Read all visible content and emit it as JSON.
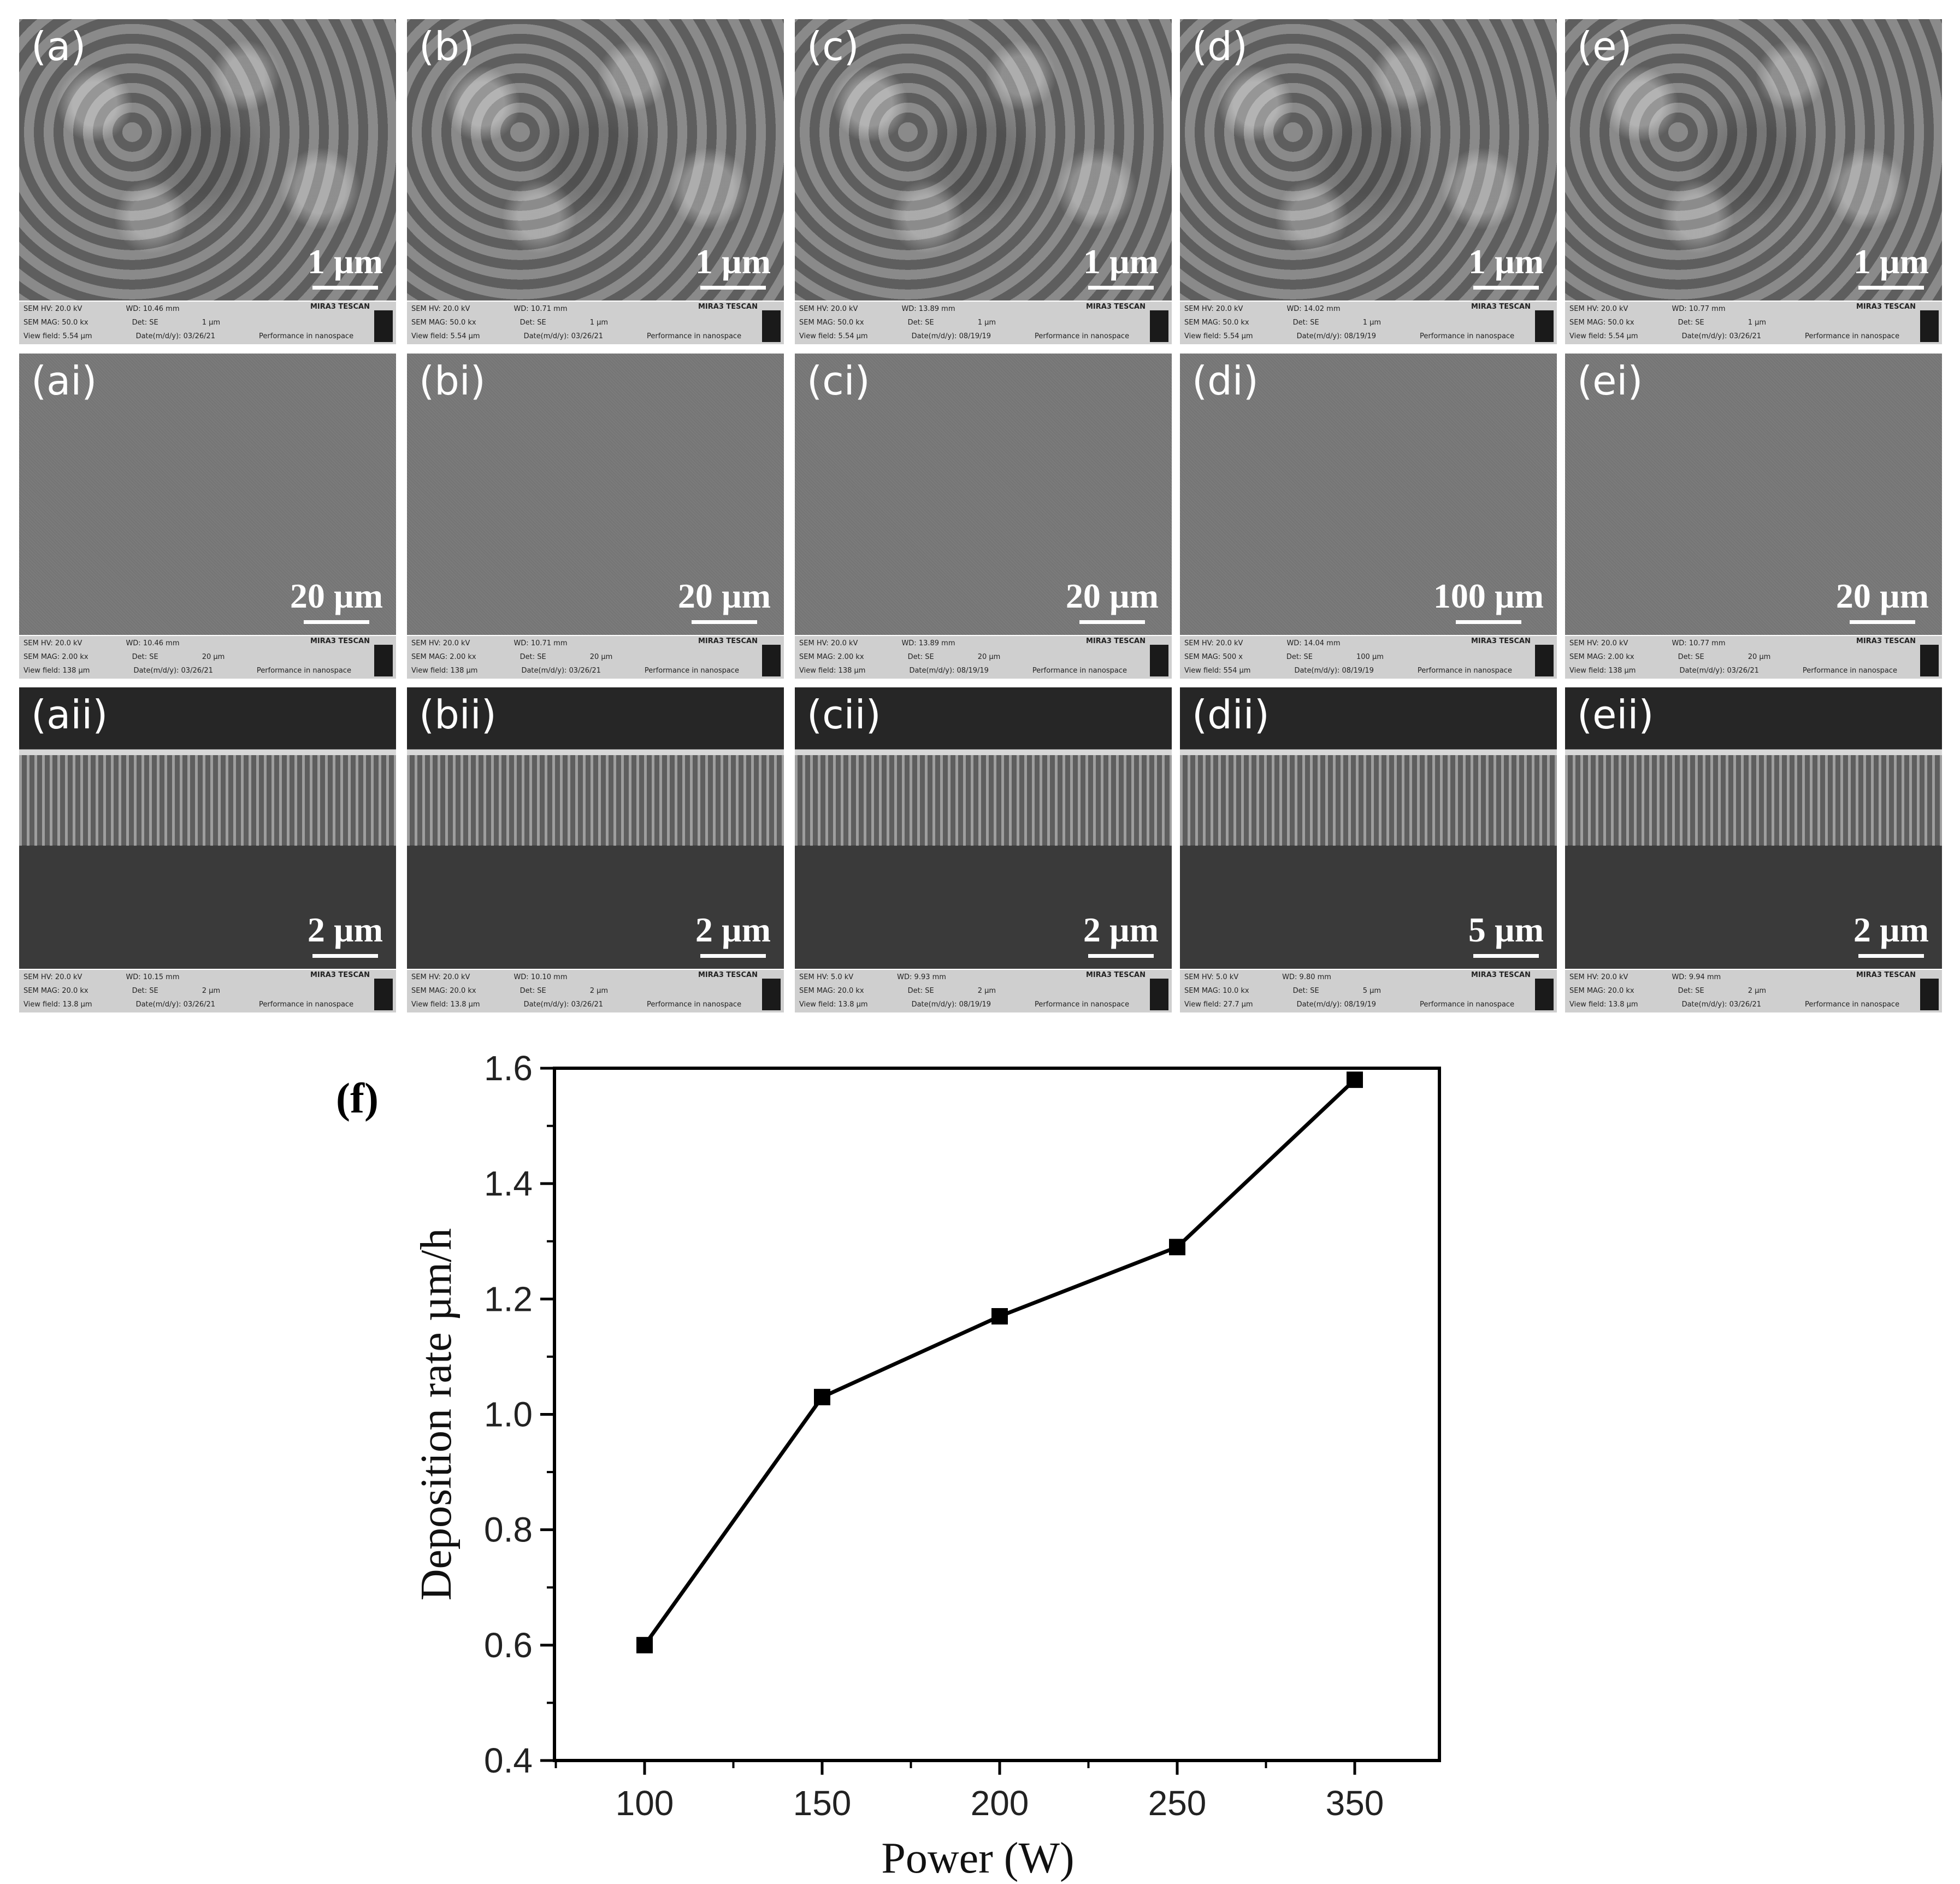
{
  "panels": [
    {
      "id": "a",
      "label": "(a)",
      "scale": "1 µm",
      "kind": "top",
      "info": {
        "hv": "SEM HV: 20.0 kV",
        "wd": "WD: 10.46 mm",
        "mag": "SEM MAG: 50.0 kx",
        "det": "Det: SE",
        "sb": "1 µm",
        "vf": "View field: 5.54 µm",
        "date": "Date(m/d/y): 03/26/21",
        "brand": "MIRA3 TESCAN",
        "perf": "Performance in nanospace"
      }
    },
    {
      "id": "b",
      "label": "(b)",
      "scale": "1 µm",
      "kind": "top",
      "info": {
        "hv": "SEM HV: 20.0 kV",
        "wd": "WD: 10.71 mm",
        "mag": "SEM MAG: 50.0 kx",
        "det": "Det: SE",
        "sb": "1 µm",
        "vf": "View field: 5.54 µm",
        "date": "Date(m/d/y): 03/26/21",
        "brand": "MIRA3 TESCAN",
        "perf": "Performance in nanospace"
      }
    },
    {
      "id": "c",
      "label": "(c)",
      "scale": "1 µm",
      "kind": "top",
      "info": {
        "hv": "SEM HV: 20.0 kV",
        "wd": "WD: 13.89 mm",
        "mag": "SEM MAG: 50.0 kx",
        "det": "Det: SE",
        "sb": "1 µm",
        "vf": "View field: 5.54 µm",
        "date": "Date(m/d/y): 08/19/19",
        "brand": "MIRA3 TESCAN",
        "perf": "Performance in nanospace"
      }
    },
    {
      "id": "d",
      "label": "(d)",
      "scale": "1 µm",
      "kind": "top",
      "info": {
        "hv": "SEM HV: 20.0 kV",
        "wd": "WD: 14.02 mm",
        "mag": "SEM MAG: 50.0 kx",
        "det": "Det: SE",
        "sb": "1 µm",
        "vf": "View field: 5.54 µm",
        "date": "Date(m/d/y): 08/19/19",
        "brand": "MIRA3 TESCAN",
        "perf": "Performance in nanospace"
      }
    },
    {
      "id": "e",
      "label": "(e)",
      "scale": "1 µm",
      "kind": "top",
      "info": {
        "hv": "SEM HV: 20.0 kV",
        "wd": "WD: 10.77 mm",
        "mag": "SEM MAG: 50.0 kx",
        "det": "Det: SE",
        "sb": "1 µm",
        "vf": "View field: 5.54 µm",
        "date": "Date(m/d/y): 03/26/21",
        "brand": "MIRA3 TESCAN",
        "perf": "Performance in nanospace"
      }
    },
    {
      "id": "ai",
      "label": "(ai)",
      "scale": "20 µm",
      "kind": "mid",
      "info": {
        "hv": "SEM HV: 20.0 kV",
        "wd": "WD: 10.46 mm",
        "mag": "SEM MAG: 2.00 kx",
        "det": "Det: SE",
        "sb": "20 µm",
        "vf": "View field: 138 µm",
        "date": "Date(m/d/y): 03/26/21",
        "brand": "MIRA3 TESCAN",
        "perf": "Performance in nanospace"
      }
    },
    {
      "id": "bi",
      "label": "(bi)",
      "scale": "20 µm",
      "kind": "mid",
      "info": {
        "hv": "SEM HV: 20.0 kV",
        "wd": "WD: 10.71 mm",
        "mag": "SEM MAG: 2.00 kx",
        "det": "Det: SE",
        "sb": "20 µm",
        "vf": "View field: 138 µm",
        "date": "Date(m/d/y): 03/26/21",
        "brand": "MIRA3 TESCAN",
        "perf": "Performance in nanospace"
      }
    },
    {
      "id": "ci",
      "label": "(ci)",
      "scale": "20 µm",
      "kind": "mid",
      "info": {
        "hv": "SEM HV: 20.0 kV",
        "wd": "WD: 13.89 mm",
        "mag": "SEM MAG: 2.00 kx",
        "det": "Det: SE",
        "sb": "20 µm",
        "vf": "View field: 138 µm",
        "date": "Date(m/d/y): 08/19/19",
        "brand": "MIRA3 TESCAN",
        "perf": "Performance in nanospace"
      }
    },
    {
      "id": "di",
      "label": "(di)",
      "scale": "100 µm",
      "kind": "mid",
      "info": {
        "hv": "SEM HV: 20.0 kV",
        "wd": "WD: 14.04 mm",
        "mag": "SEM MAG: 500 x",
        "det": "Det: SE",
        "sb": "100 µm",
        "vf": "View field: 554 µm",
        "date": "Date(m/d/y): 08/19/19",
        "brand": "MIRA3 TESCAN",
        "perf": "Performance in nanospace"
      }
    },
    {
      "id": "ei",
      "label": "(ei)",
      "scale": "20 µm",
      "kind": "mid",
      "info": {
        "hv": "SEM HV: 20.0 kV",
        "wd": "WD: 10.77 mm",
        "mag": "SEM MAG: 2.00 kx",
        "det": "Det: SE",
        "sb": "20 µm",
        "vf": "View field: 138 µm",
        "date": "Date(m/d/y): 03/26/21",
        "brand": "MIRA3 TESCAN",
        "perf": "Performance in nanospace"
      }
    },
    {
      "id": "aii",
      "label": "(aii)",
      "scale": "2 µm",
      "kind": "cross",
      "info": {
        "hv": "SEM HV: 20.0 kV",
        "wd": "WD: 10.15 mm",
        "mag": "SEM MAG: 20.0 kx",
        "det": "Det: SE",
        "sb": "2 µm",
        "vf": "View field: 13.8 µm",
        "date": "Date(m/d/y): 03/26/21",
        "brand": "MIRA3 TESCAN",
        "perf": "Performance in nanospace"
      }
    },
    {
      "id": "bii",
      "label": "(bii)",
      "scale": "2 µm",
      "kind": "cross",
      "info": {
        "hv": "SEM HV: 20.0 kV",
        "wd": "WD: 10.10 mm",
        "mag": "SEM MAG: 20.0 kx",
        "det": "Det: SE",
        "sb": "2 µm",
        "vf": "View field: 13.8 µm",
        "date": "Date(m/d/y): 03/26/21",
        "brand": "MIRA3 TESCAN",
        "perf": "Performance in nanospace"
      }
    },
    {
      "id": "cii",
      "label": "(cii)",
      "scale": "2 µm",
      "kind": "cross",
      "info": {
        "hv": "SEM HV: 5.0 kV",
        "wd": "WD: 9.93 mm",
        "mag": "SEM MAG: 20.0 kx",
        "det": "Det: SE",
        "sb": "2 µm",
        "vf": "View field: 13.8 µm",
        "date": "Date(m/d/y): 08/19/19",
        "brand": "MIRA3 TESCAN",
        "perf": "Performance in nanospace"
      }
    },
    {
      "id": "dii",
      "label": "(dii)",
      "scale": "5 µm",
      "kind": "cross",
      "info": {
        "hv": "SEM HV: 5.0 kV",
        "wd": "WD: 9.80 mm",
        "mag": "SEM MAG: 10.0 kx",
        "det": "Det: SE",
        "sb": "5 µm",
        "vf": "View field: 27.7 µm",
        "date": "Date(m/d/y): 08/19/19",
        "brand": "MIRA3 TESCAN",
        "perf": "Performance in nanospace"
      }
    },
    {
      "id": "eii",
      "label": "(eii)",
      "scale": "2 µm",
      "kind": "cross",
      "info": {
        "hv": "SEM HV: 20.0 kV",
        "wd": "WD: 9.94 mm",
        "mag": "SEM MAG: 20.0 kx",
        "det": "Det: SE",
        "sb": "2 µm",
        "vf": "View field: 13.8 µm",
        "date": "Date(m/d/y): 03/26/21",
        "brand": "MIRA3 TESCAN",
        "perf": "Performance in nanospace"
      }
    }
  ],
  "figure_label": "(f)",
  "chart_data": {
    "type": "line",
    "xlabel": "Power (W)",
    "ylabel": "Deposition rate µm/h",
    "x": [
      100,
      150,
      200,
      250,
      350
    ],
    "xticks": [
      "100",
      "150",
      "200",
      "250",
      "350"
    ],
    "y": [
      0.6,
      1.03,
      1.17,
      1.29,
      1.58
    ],
    "ylim": [
      0.4,
      1.6
    ],
    "yticks": [
      "0.4",
      "0.6",
      "0.8",
      "1.0",
      "1.2",
      "1.4",
      "1.6"
    ],
    "marker": "square",
    "color": "#000000",
    "grid": false,
    "x_axis_note": "categorical equal spacing"
  }
}
